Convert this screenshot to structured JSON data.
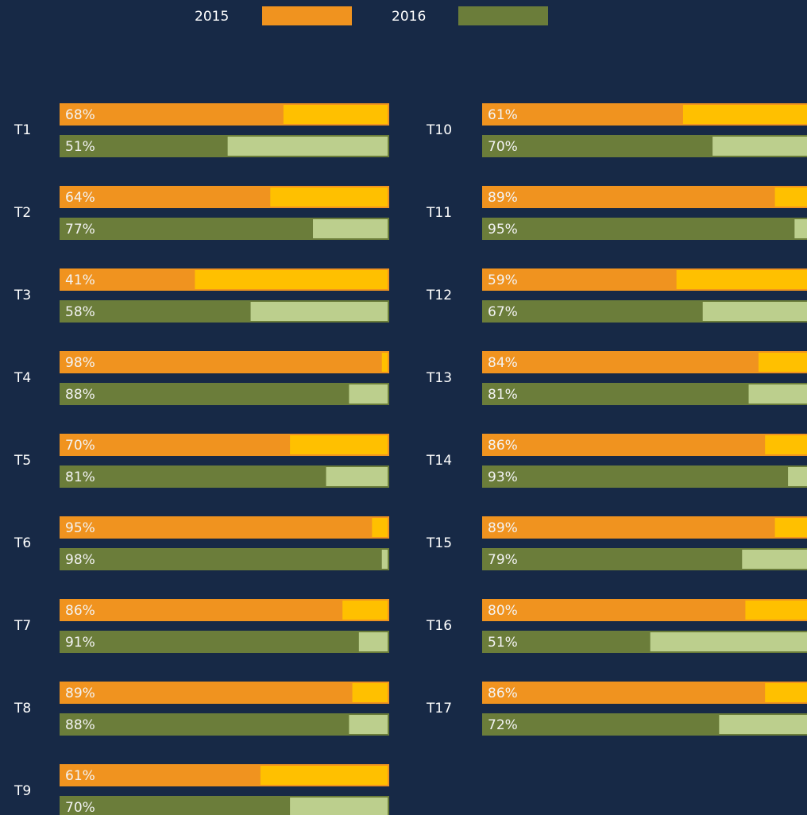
{
  "chart_data": {
    "type": "bar",
    "orientation": "horizontal",
    "categories": [
      "T1",
      "T2",
      "T3",
      "T4",
      "T5",
      "T6",
      "T7",
      "T8",
      "T9",
      "T10",
      "T11",
      "T12",
      "T13",
      "T14",
      "T15",
      "T16",
      "T17"
    ],
    "xlim": [
      0,
      100
    ],
    "series": [
      {
        "name": "2015",
        "color": "#f0931f",
        "remainder_color": "#ffc000",
        "values": [
          68,
          64,
          41,
          98,
          70,
          95,
          86,
          89,
          61,
          61,
          89,
          59,
          84,
          86,
          89,
          80,
          86
        ],
        "value_labels": [
          "68%",
          "64%",
          "41%",
          "98%",
          "70%",
          "95%",
          "86%",
          "89%",
          "61%",
          "61%",
          "89%",
          "59%",
          "84%",
          "86%",
          "89%",
          "80%",
          "86%"
        ]
      },
      {
        "name": "2016",
        "color": "#6b7d3a",
        "remainder_color": "#bccf8d",
        "values": [
          51,
          77,
          58,
          88,
          81,
          98,
          91,
          88,
          70,
          70,
          95,
          67,
          81,
          93,
          79,
          51,
          72
        ],
        "value_labels": [
          "51%",
          "77%",
          "58%",
          "88%",
          "81%",
          "98%",
          "91%",
          "88%",
          "70%",
          "70%",
          "95%",
          "67%",
          "81%",
          "93%",
          "79%",
          "51%",
          "72%"
        ]
      }
    ]
  }
}
